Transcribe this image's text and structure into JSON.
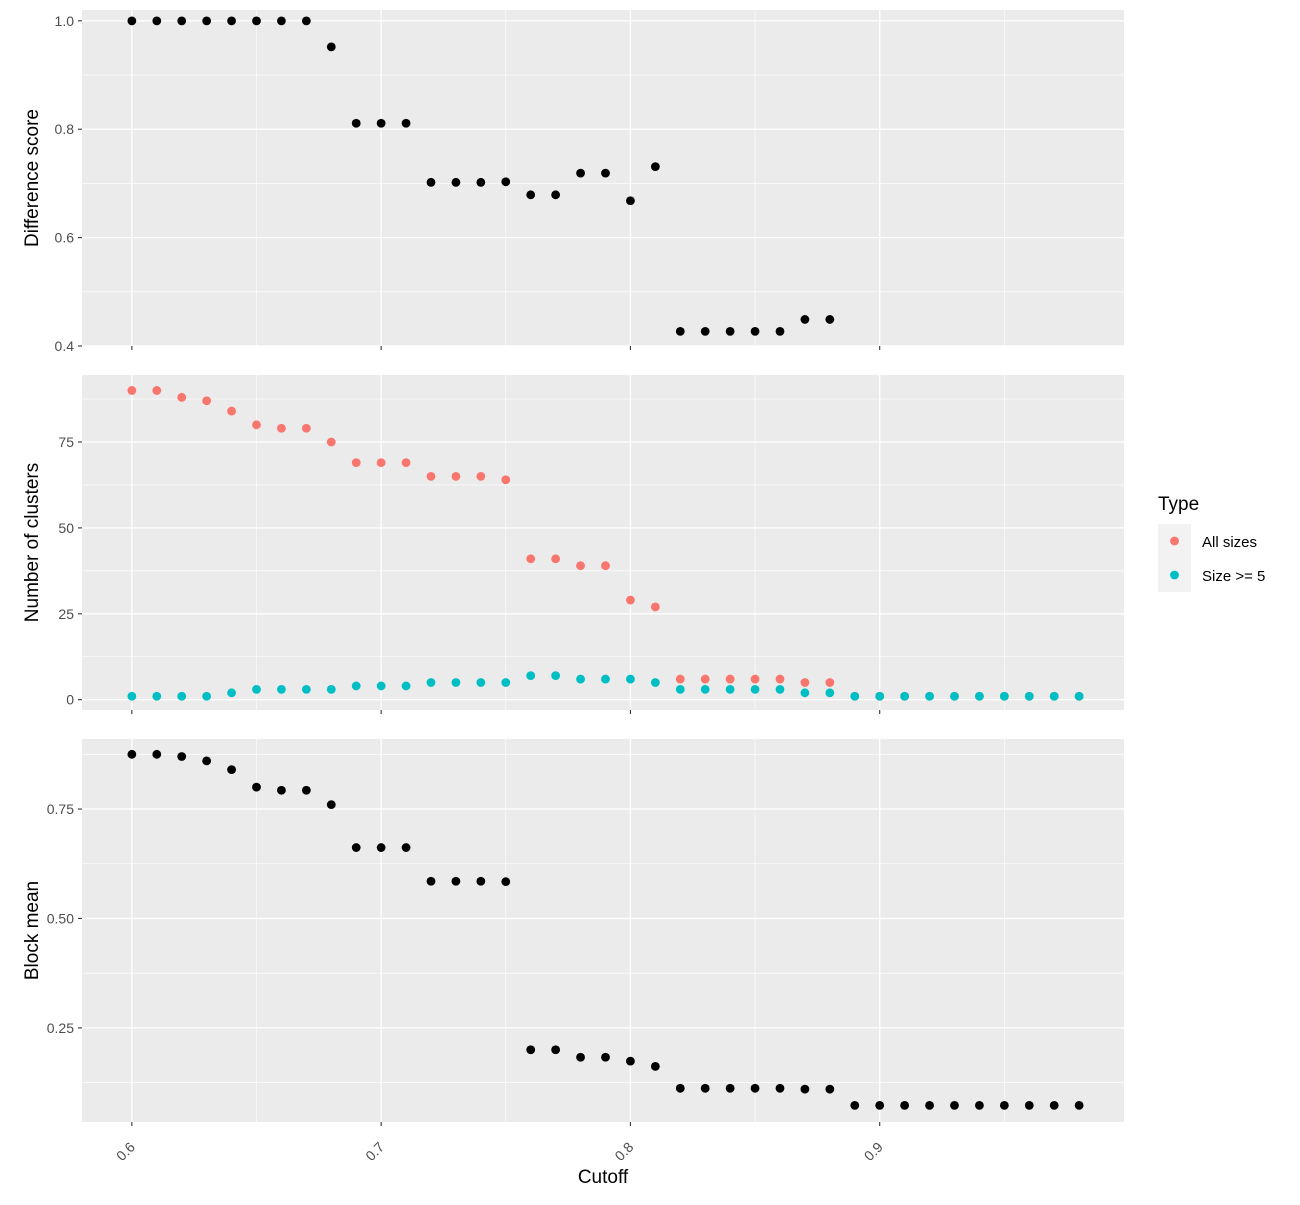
{
  "chart_data": [
    {
      "type": "scatter",
      "panel": "top",
      "ylabel": "Difference score",
      "xlim": [
        0.58,
        0.998
      ],
      "ylim": [
        0.4,
        1.02
      ],
      "yticks": [
        0.4,
        0.6,
        0.8,
        1.0
      ],
      "ytick_labels": [
        "0.4",
        "0.6",
        "0.8",
        "1.0"
      ],
      "grid": true,
      "series": [
        {
          "color": "#000000",
          "points": [
            [
              0.6,
              1.0
            ],
            [
              0.61,
              1.0
            ],
            [
              0.62,
              1.0
            ],
            [
              0.63,
              1.0
            ],
            [
              0.64,
              1.0
            ],
            [
              0.65,
              1.0
            ],
            [
              0.66,
              1.0
            ],
            [
              0.67,
              1.0
            ],
            [
              0.68,
              0.952
            ],
            [
              0.69,
              0.811
            ],
            [
              0.7,
              0.811
            ],
            [
              0.71,
              0.811
            ],
            [
              0.72,
              0.702
            ],
            [
              0.73,
              0.702
            ],
            [
              0.74,
              0.702
            ],
            [
              0.75,
              0.703
            ],
            [
              0.76,
              0.679
            ],
            [
              0.77,
              0.679
            ],
            [
              0.78,
              0.719
            ],
            [
              0.79,
              0.719
            ],
            [
              0.8,
              0.668
            ],
            [
              0.81,
              0.731
            ],
            [
              0.82,
              0.427
            ],
            [
              0.83,
              0.427
            ],
            [
              0.84,
              0.427
            ],
            [
              0.85,
              0.427
            ],
            [
              0.86,
              0.427
            ],
            [
              0.87,
              0.449
            ],
            [
              0.88,
              0.449
            ]
          ]
        }
      ]
    },
    {
      "type": "scatter",
      "panel": "middle",
      "ylabel": "Number of clusters",
      "xlim": [
        0.58,
        0.998
      ],
      "ylim": [
        -3,
        94.5
      ],
      "yticks": [
        0,
        25,
        50,
        75
      ],
      "ytick_labels": [
        "0",
        "25",
        "50",
        "75"
      ],
      "grid": true,
      "legend": {
        "title": "Type",
        "position": "right"
      },
      "series": [
        {
          "name": "All sizes",
          "color": "#F8766D",
          "points": [
            [
              0.6,
              90
            ],
            [
              0.61,
              90
            ],
            [
              0.62,
              88
            ],
            [
              0.63,
              87
            ],
            [
              0.64,
              84
            ],
            [
              0.65,
              80
            ],
            [
              0.66,
              79
            ],
            [
              0.67,
              79
            ],
            [
              0.68,
              75
            ],
            [
              0.69,
              69
            ],
            [
              0.7,
              69
            ],
            [
              0.71,
              69
            ],
            [
              0.72,
              65
            ],
            [
              0.73,
              65
            ],
            [
              0.74,
              65
            ],
            [
              0.75,
              64
            ],
            [
              0.76,
              41
            ],
            [
              0.77,
              41
            ],
            [
              0.78,
              39
            ],
            [
              0.79,
              39
            ],
            [
              0.8,
              29
            ],
            [
              0.81,
              27
            ],
            [
              0.82,
              6
            ],
            [
              0.83,
              6
            ],
            [
              0.84,
              6
            ],
            [
              0.85,
              6
            ],
            [
              0.86,
              6
            ],
            [
              0.87,
              5
            ],
            [
              0.88,
              5
            ],
            [
              0.89,
              1
            ],
            [
              0.9,
              1
            ],
            [
              0.91,
              1
            ],
            [
              0.92,
              1
            ],
            [
              0.93,
              1
            ],
            [
              0.94,
              1
            ],
            [
              0.95,
              1
            ],
            [
              0.96,
              1
            ],
            [
              0.97,
              1
            ],
            [
              0.98,
              1
            ]
          ]
        },
        {
          "name": "Size >= 5",
          "color": "#00BFC4",
          "points": [
            [
              0.6,
              1
            ],
            [
              0.61,
              1
            ],
            [
              0.62,
              1
            ],
            [
              0.63,
              1
            ],
            [
              0.64,
              2
            ],
            [
              0.65,
              3
            ],
            [
              0.66,
              3
            ],
            [
              0.67,
              3
            ],
            [
              0.68,
              3
            ],
            [
              0.69,
              4
            ],
            [
              0.7,
              4
            ],
            [
              0.71,
              4
            ],
            [
              0.72,
              5
            ],
            [
              0.73,
              5
            ],
            [
              0.74,
              5
            ],
            [
              0.75,
              5
            ],
            [
              0.76,
              7
            ],
            [
              0.77,
              7
            ],
            [
              0.78,
              6
            ],
            [
              0.79,
              6
            ],
            [
              0.8,
              6
            ],
            [
              0.81,
              5
            ],
            [
              0.82,
              3
            ],
            [
              0.83,
              3
            ],
            [
              0.84,
              3
            ],
            [
              0.85,
              3
            ],
            [
              0.86,
              3
            ],
            [
              0.87,
              2
            ],
            [
              0.88,
              2
            ],
            [
              0.89,
              1
            ],
            [
              0.9,
              1
            ],
            [
              0.91,
              1
            ],
            [
              0.92,
              1
            ],
            [
              0.93,
              1
            ],
            [
              0.94,
              1
            ],
            [
              0.95,
              1
            ],
            [
              0.96,
              1
            ],
            [
              0.97,
              1
            ],
            [
              0.98,
              1
            ]
          ]
        }
      ]
    },
    {
      "type": "scatter",
      "panel": "bottom",
      "ylabel": "Block mean",
      "xlabel": "Cutoff",
      "xlim": [
        0.58,
        0.998
      ],
      "ylim": [
        0.035,
        0.91
      ],
      "yticks": [
        0.25,
        0.5,
        0.75
      ],
      "ytick_labels": [
        "0.25",
        "0.50",
        "0.75"
      ],
      "xticks": [
        0.6,
        0.7,
        0.8,
        0.9
      ],
      "xtick_labels": [
        "0.6",
        "0.7",
        "0.8",
        "0.9"
      ],
      "grid": true,
      "series": [
        {
          "color": "#000000",
          "points": [
            [
              0.6,
              0.875
            ],
            [
              0.61,
              0.875
            ],
            [
              0.62,
              0.87
            ],
            [
              0.63,
              0.86
            ],
            [
              0.64,
              0.84
            ],
            [
              0.65,
              0.8
            ],
            [
              0.66,
              0.793
            ],
            [
              0.67,
              0.793
            ],
            [
              0.68,
              0.76
            ],
            [
              0.69,
              0.662
            ],
            [
              0.7,
              0.662
            ],
            [
              0.71,
              0.662
            ],
            [
              0.72,
              0.585
            ],
            [
              0.73,
              0.585
            ],
            [
              0.74,
              0.585
            ],
            [
              0.75,
              0.584
            ],
            [
              0.76,
              0.2
            ],
            [
              0.77,
              0.2
            ],
            [
              0.78,
              0.183
            ],
            [
              0.79,
              0.183
            ],
            [
              0.8,
              0.174
            ],
            [
              0.81,
              0.162
            ],
            [
              0.82,
              0.112
            ],
            [
              0.83,
              0.112
            ],
            [
              0.84,
              0.112
            ],
            [
              0.85,
              0.112
            ],
            [
              0.86,
              0.112
            ],
            [
              0.87,
              0.11
            ],
            [
              0.88,
              0.11
            ],
            [
              0.89,
              0.073
            ],
            [
              0.9,
              0.073
            ],
            [
              0.91,
              0.073
            ],
            [
              0.92,
              0.073
            ],
            [
              0.93,
              0.073
            ],
            [
              0.94,
              0.073
            ],
            [
              0.95,
              0.073
            ],
            [
              0.96,
              0.073
            ],
            [
              0.97,
              0.073
            ],
            [
              0.98,
              0.073
            ]
          ]
        }
      ]
    }
  ]
}
